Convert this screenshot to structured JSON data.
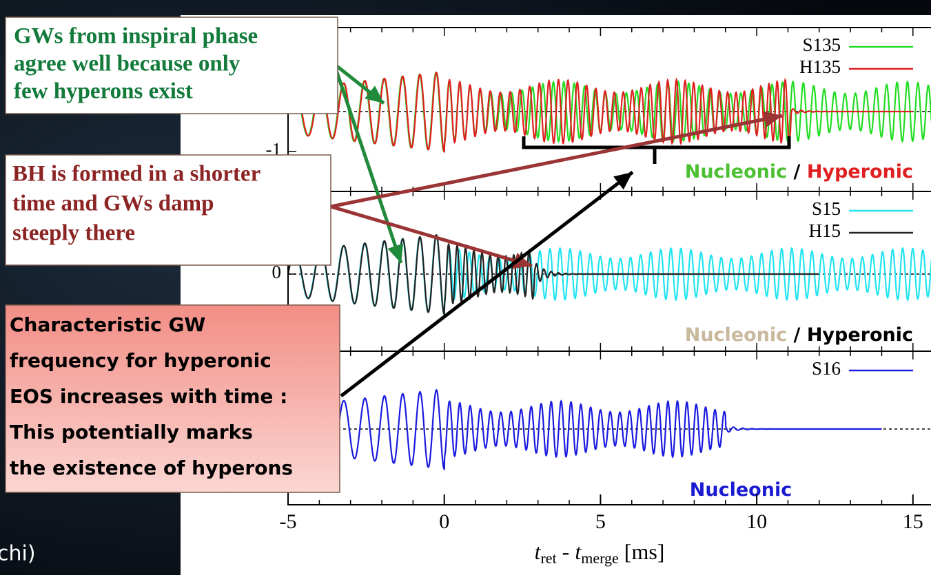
{
  "notes": [
    {
      "lines": [
        "GWs from inspiral phase",
        "agree well because only",
        "few hyperons exist"
      ]
    },
    {
      "lines": [
        "BH is formed in a shorter",
        "time and GWs damp",
        "steeply there"
      ]
    },
    {
      "lines": [
        "Characteristic GW",
        "frequency for hyperonic",
        "EOS increases with time :",
        "This potentially marks",
        "the existence of hyperons"
      ]
    }
  ],
  "chart_data": {
    "type": "waveform-panels",
    "xlim": [
      -5,
      15.6
    ],
    "xticks": [
      -5,
      0,
      5,
      10,
      15
    ],
    "xlabel": {
      "t1": "t",
      "sub1": "ret",
      "mid": " - ",
      "t2": "t",
      "sub2": "merge",
      "unit": " [ms]"
    },
    "panels": [
      {
        "series": [
          {
            "name": "S135",
            "color": "#22dd22"
          },
          {
            "name": "H135",
            "color": "#e02020"
          }
        ],
        "yticks": [
          -1
        ],
        "tags": [
          {
            "text": "Nucleonic",
            "color": "#4cbf32"
          },
          {
            "text": " / ",
            "color": "#000000"
          },
          {
            "text": "Hyperonic",
            "color": "#e02020"
          }
        ]
      },
      {
        "series": [
          {
            "name": "S15",
            "color": "#22e4f0"
          },
          {
            "name": "H15",
            "color": "#222222"
          }
        ],
        "yticks": [
          0
        ],
        "tags": [
          {
            "text": "Nucleonic",
            "color": "#c8b89c"
          },
          {
            "text": " / Hyperonic",
            "color": "#000000"
          }
        ]
      },
      {
        "series": [
          {
            "name": "S16",
            "color": "#1a1ae0"
          }
        ],
        "yticks": [],
        "tags": [
          {
            "text": "Nucleonic",
            "color": "#1a1ad0"
          }
        ]
      }
    ]
  },
  "footer": "chi)"
}
